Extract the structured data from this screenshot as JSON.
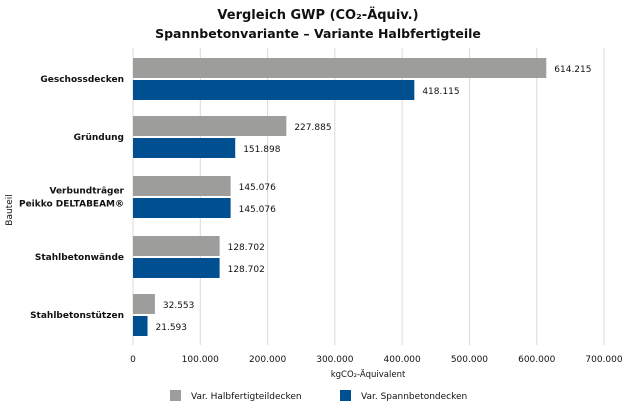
{
  "chart_data": {
    "type": "bar",
    "orientation": "horizontal",
    "title": "Vergleich GWP (CO₂-Äquiv.)",
    "subtitle": "Spannbetonvariante – Variante Halbfertigteile",
    "xlabel": "kgCO₂-Äquivalent",
    "ylabel": "Bauteil",
    "xlim": [
      0,
      700000
    ],
    "xticks": [
      0,
      100000,
      200000,
      300000,
      400000,
      500000,
      600000,
      700000
    ],
    "xtick_labels": [
      "0",
      "100.000",
      "200.000",
      "300.000",
      "400.000",
      "500.000",
      "600.000",
      "700.000"
    ],
    "grid": "vertical",
    "legend_position": "bottom",
    "categories": [
      [
        "Geschossdecken"
      ],
      [
        "Gründung"
      ],
      [
        "Verbundträger",
        "Peikko DELTABEAM®"
      ],
      [
        "Stahlbetonwände"
      ],
      [
        "Stahlbetonstützen"
      ]
    ],
    "series": [
      {
        "name": "Var. Halbfertigteildecken",
        "color": "#9d9d9c",
        "values": [
          614215,
          227885,
          145076,
          128702,
          32553
        ],
        "labels": [
          "614.215",
          "227.885",
          "145.076",
          "128.702",
          "32.553"
        ]
      },
      {
        "name": "Var. Spannbetondecken",
        "color": "#004f91",
        "values": [
          418115,
          151898,
          145076,
          128702,
          21593
        ],
        "labels": [
          "418.115",
          "151.898",
          "145.076",
          "128.702",
          "21.593"
        ]
      }
    ]
  }
}
